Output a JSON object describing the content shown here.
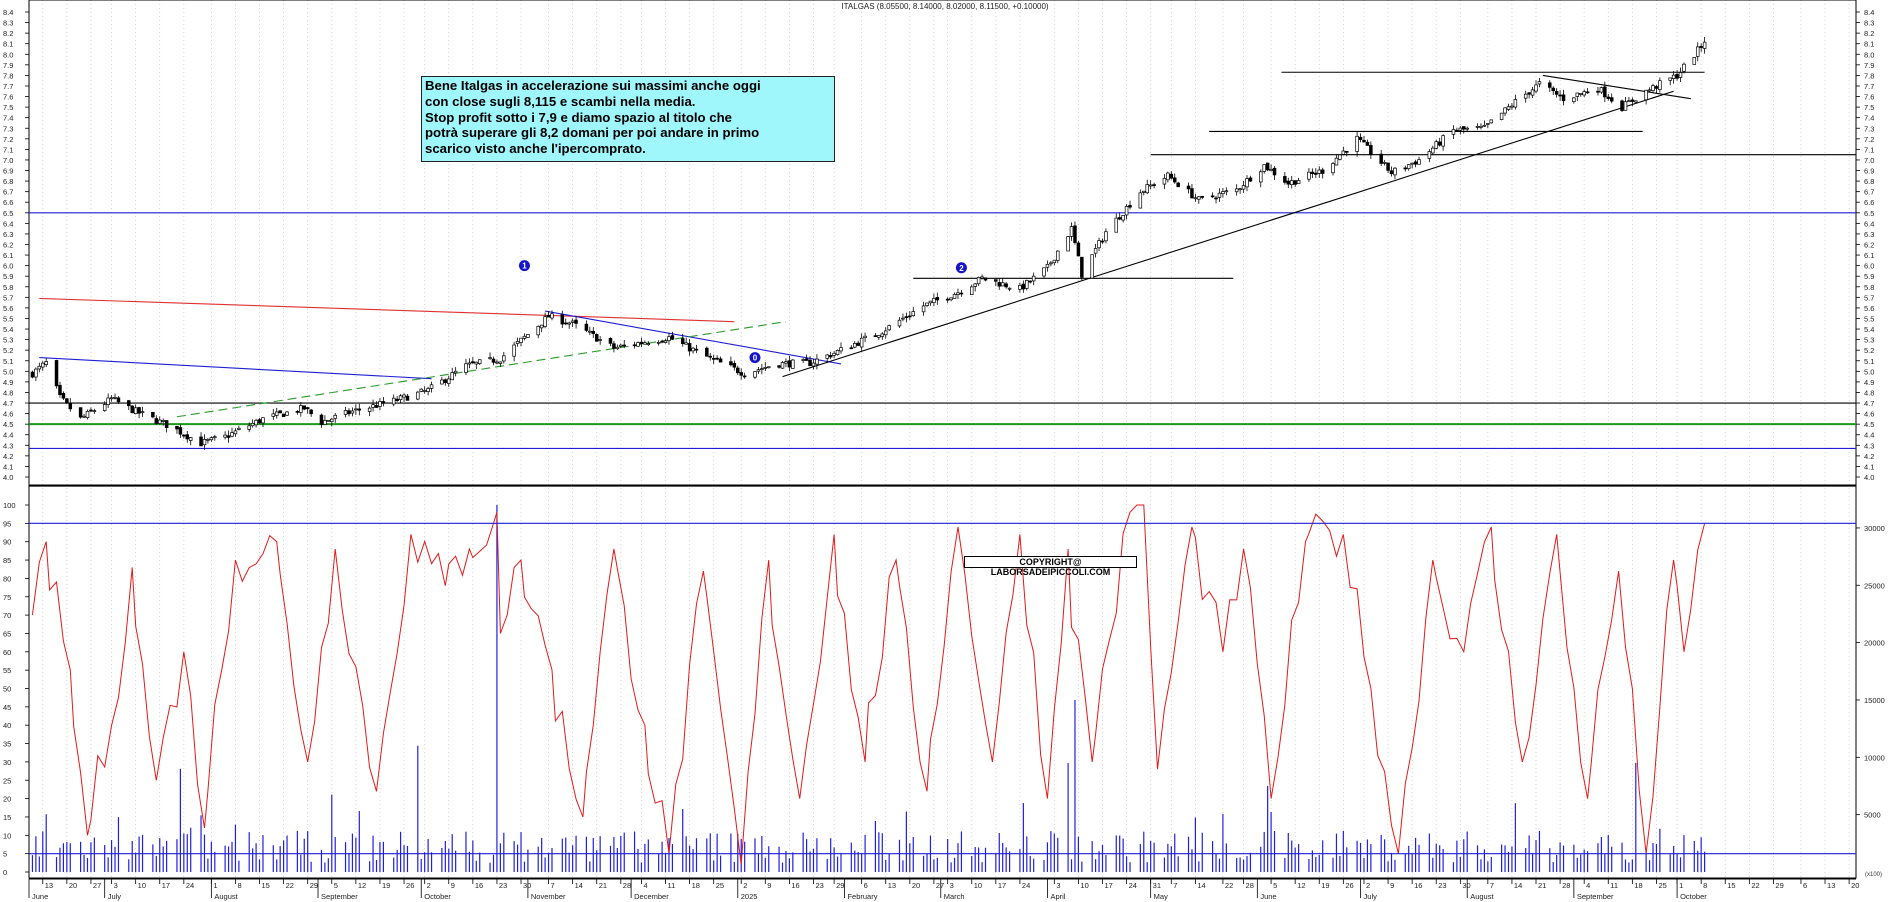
{
  "title": "ITALGAS (8.05500, 8.14000, 8.02000, 8.11500, +0.10000)",
  "annotation": {
    "lines": [
      "Bene Italgas in accelerazione sui massimi anche oggi",
      "con close sugli 8,115 e scambi nella media.",
      "Stop profit sotto i 7,9 e diamo spazio al titolo che",
      "potrà superare gli 8,2 domani per poi andare in primo",
      "scarico visto anche l'ipercomprato."
    ]
  },
  "copyright": "COPYRIGHT@ LABORSADEIPICCOLI.COM",
  "volume_unit_label": "(x100)",
  "chart_data": [
    {
      "type": "candlestick",
      "title": "ITALGAS (8.05500, 8.14000, 8.02000, 8.11500, +0.10000)",
      "ylim": [
        4.0,
        8.4
      ],
      "y_ticks": [
        "4.0",
        "4.1",
        "4.2",
        "4.3",
        "4.4",
        "4.5",
        "4.6",
        "4.7",
        "4.8",
        "4.9",
        "5.0",
        "5.1",
        "5.2",
        "5.3",
        "5.4",
        "5.5",
        "5.6",
        "5.7",
        "5.8",
        "5.9",
        "6.0",
        "6.1",
        "6.2",
        "6.3",
        "6.4",
        "6.5",
        "6.6",
        "6.7",
        "6.8",
        "6.9",
        "7.0",
        "7.1",
        "7.2",
        "7.3",
        "7.4",
        "7.5",
        "7.6",
        "7.7",
        "7.8",
        "7.9",
        "8.0",
        "8.1",
        "8.2",
        "8.3",
        "8.4"
      ],
      "x_range": [
        "2024-06-13",
        "2025-10-24"
      ],
      "last_bar": {
        "open": 8.055,
        "high": 8.14,
        "low": 8.02,
        "close": 8.115,
        "change": 0.1
      },
      "close_path": [
        [
          "2024-06-10",
          4.98
        ],
        [
          "2024-06-14",
          5.08
        ],
        [
          "2024-06-18",
          4.75
        ],
        [
          "2024-06-24",
          4.55
        ],
        [
          "2024-07-03",
          4.74
        ],
        [
          "2024-07-10",
          4.62
        ],
        [
          "2024-07-20",
          4.48
        ],
        [
          "2024-07-29",
          4.32
        ],
        [
          "2024-08-05",
          4.38
        ],
        [
          "2024-08-16",
          4.55
        ],
        [
          "2024-08-28",
          4.65
        ],
        [
          "2024-09-02",
          4.52
        ],
        [
          "2024-09-11",
          4.62
        ],
        [
          "2024-09-23",
          4.72
        ],
        [
          "2024-10-03",
          4.82
        ],
        [
          "2024-10-14",
          5.05
        ],
        [
          "2024-10-24",
          5.12
        ],
        [
          "2024-11-01",
          5.35
        ],
        [
          "2024-11-07",
          5.52
        ],
        [
          "2024-11-14",
          5.45
        ],
        [
          "2024-11-26",
          5.22
        ],
        [
          "2024-12-05",
          5.28
        ],
        [
          "2024-12-12",
          5.32
        ],
        [
          "2024-12-24",
          5.12
        ],
        [
          "2025-01-03",
          4.98
        ],
        [
          "2025-01-12",
          5.07
        ],
        [
          "2025-01-22",
          5.08
        ],
        [
          "2025-01-31",
          5.2
        ],
        [
          "2025-02-12",
          5.38
        ],
        [
          "2025-02-24",
          5.62
        ],
        [
          "2025-03-06",
          5.75
        ],
        [
          "2025-03-13",
          5.88
        ],
        [
          "2025-03-24",
          5.78
        ],
        [
          "2025-04-01",
          5.98
        ],
        [
          "2025-04-08",
          6.35
        ],
        [
          "2025-04-11",
          5.92
        ],
        [
          "2025-04-18",
          6.32
        ],
        [
          "2025-04-28",
          6.7
        ],
        [
          "2025-05-06",
          6.85
        ],
        [
          "2025-05-15",
          6.62
        ],
        [
          "2025-05-26",
          6.72
        ],
        [
          "2025-06-03",
          6.95
        ],
        [
          "2025-06-10",
          6.78
        ],
        [
          "2025-06-20",
          6.9
        ],
        [
          "2025-06-30",
          7.2
        ],
        [
          "2025-07-10",
          6.88
        ],
        [
          "2025-07-18",
          7.0
        ],
        [
          "2025-07-28",
          7.28
        ],
        [
          "2025-08-06",
          7.3
        ],
        [
          "2025-08-15",
          7.55
        ],
        [
          "2025-08-22",
          7.72
        ],
        [
          "2025-08-29",
          7.58
        ],
        [
          "2025-09-08",
          7.68
        ],
        [
          "2025-09-15",
          7.5
        ],
        [
          "2025-09-22",
          7.65
        ],
        [
          "2025-10-01",
          7.8
        ],
        [
          "2025-10-09",
          8.115
        ]
      ],
      "support_resistance_lines": [
        {
          "color": "#1f1fd6",
          "y": 6.5
        },
        {
          "color": "#000000",
          "y": 4.7
        },
        {
          "color": "#1a9a1a",
          "y": 4.5
        },
        {
          "color": "#1f1fd6",
          "y": 4.27
        },
        {
          "color": "#000000",
          "y": 7.05,
          "from": "2025-05-01"
        },
        {
          "color": "#000000",
          "y": 7.27,
          "from": "2025-05-18",
          "to": "2025-09-21"
        },
        {
          "color": "#000000",
          "y": 7.83,
          "from": "2025-06-08",
          "to": "2025-10-09"
        },
        {
          "color": "#000000",
          "y": 5.88,
          "from": "2025-02-21",
          "to": "2025-05-25"
        }
      ],
      "trend_lines": [
        {
          "color": "#e03030",
          "from": [
            "2024-06-12",
            5.69
          ],
          "to": [
            "2024-12-31",
            5.47
          ]
        },
        {
          "color": "#1f1fd6",
          "from": [
            "2024-06-12",
            5.13
          ],
          "to": [
            "2024-10-04",
            4.93
          ]
        },
        {
          "color": "#1f1fd6",
          "from": [
            "2024-11-06",
            5.57
          ],
          "to": [
            "2025-01-31",
            5.07
          ]
        },
        {
          "color": "#2a9a2a",
          "dashed": true,
          "from": [
            "2024-07-22",
            4.57
          ],
          "to": [
            "2025-01-15",
            5.47
          ]
        },
        {
          "color": "#000000",
          "from": [
            "2025-01-14",
            4.95
          ],
          "to": [
            "2025-09-30",
            7.65
          ]
        },
        {
          "color": "#000000",
          "from": [
            "2025-08-23",
            7.8
          ],
          "to": [
            "2025-10-05",
            7.58
          ]
        }
      ],
      "markers": [
        {
          "label": "1",
          "x": "2024-10-31",
          "y": 6.0
        },
        {
          "label": "2",
          "x": "2025-03-07",
          "y": 5.98
        },
        {
          "label": "0",
          "x": "2025-01-06",
          "y": 5.13
        }
      ]
    },
    {
      "type": "line+bar",
      "ylim_left": [
        0,
        100
      ],
      "y_ticks_left": [
        "0",
        "5",
        "10",
        "15",
        "20",
        "25",
        "30",
        "35",
        "40",
        "45",
        "50",
        "55",
        "60",
        "65",
        "70",
        "75",
        "80",
        "85",
        "90",
        "95",
        "100"
      ],
      "ylim_right": [
        0,
        32000
      ],
      "y_ticks_right": [
        "5000",
        "10000",
        "15000",
        "20000",
        "25000",
        "30000"
      ],
      "oscillator_levels": [
        95,
        5
      ],
      "oscillator_key_points": [
        [
          "2024-06-10",
          70
        ],
        [
          "2024-06-14",
          90
        ],
        [
          "2024-06-21",
          55
        ],
        [
          "2024-06-26",
          10
        ],
        [
          "2024-07-03",
          40
        ],
        [
          "2024-07-09",
          83
        ],
        [
          "2024-07-16",
          25
        ],
        [
          "2024-07-24",
          60
        ],
        [
          "2024-07-30",
          12
        ],
        [
          "2024-08-08",
          85
        ],
        [
          "2024-08-20",
          90
        ],
        [
          "2024-08-29",
          30
        ],
        [
          "2024-09-06",
          88
        ],
        [
          "2024-09-18",
          22
        ],
        [
          "2024-09-28",
          92
        ],
        [
          "2024-10-08",
          78
        ],
        [
          "2024-10-15",
          88
        ],
        [
          "2024-10-22",
          95
        ],
        [
          "2024-10-23",
          98
        ],
        [
          "2024-10-24",
          65
        ],
        [
          "2024-10-30",
          85
        ],
        [
          "2024-11-08",
          55
        ],
        [
          "2024-11-17",
          15
        ],
        [
          "2024-11-26",
          88
        ],
        [
          "2024-12-05",
          40
        ],
        [
          "2024-12-12",
          5
        ],
        [
          "2024-12-22",
          82
        ],
        [
          "2025-01-02",
          2
        ],
        [
          "2025-01-10",
          85
        ],
        [
          "2025-01-19",
          20
        ],
        [
          "2025-01-29",
          92
        ],
        [
          "2025-02-07",
          30
        ],
        [
          "2025-02-16",
          85
        ],
        [
          "2025-02-25",
          22
        ],
        [
          "2025-03-06",
          94
        ],
        [
          "2025-03-16",
          30
        ],
        [
          "2025-03-24",
          92
        ],
        [
          "2025-04-01",
          20
        ],
        [
          "2025-04-07",
          88
        ],
        [
          "2025-04-14",
          30
        ],
        [
          "2025-04-25",
          98
        ],
        [
          "2025-04-29",
          100
        ],
        [
          "2025-05-03",
          28
        ],
        [
          "2025-05-13",
          94
        ],
        [
          "2025-05-22",
          60
        ],
        [
          "2025-05-28",
          88
        ],
        [
          "2025-06-05",
          20
        ],
        [
          "2025-06-15",
          90
        ],
        [
          "2025-06-26",
          92
        ],
        [
          "2025-07-04",
          50
        ],
        [
          "2025-07-12",
          5
        ],
        [
          "2025-07-22",
          85
        ],
        [
          "2025-07-31",
          60
        ],
        [
          "2025-08-08",
          94
        ],
        [
          "2025-08-17",
          30
        ],
        [
          "2025-08-27",
          92
        ],
        [
          "2025-09-05",
          20
        ],
        [
          "2025-09-14",
          82
        ],
        [
          "2025-09-22",
          5
        ],
        [
          "2025-09-30",
          85
        ],
        [
          "2025-10-03",
          60
        ],
        [
          "2025-10-09",
          95
        ]
      ]
    }
  ],
  "x_axis": {
    "day_ticks": [
      [
        "2024-06-13",
        "13"
      ],
      [
        "2024-06-20",
        "20"
      ],
      [
        "2024-06-27",
        "27"
      ],
      [
        "2024-07-03",
        "3"
      ],
      [
        "2024-07-10",
        "10"
      ],
      [
        "2024-07-17",
        "17"
      ],
      [
        "2024-07-24",
        "24"
      ],
      [
        "2024-08-01",
        "1"
      ],
      [
        "2024-08-08",
        "8"
      ],
      [
        "2024-08-15",
        "15"
      ],
      [
        "2024-08-22",
        "22"
      ],
      [
        "2024-08-29",
        "29"
      ],
      [
        "2024-09-05",
        "5"
      ],
      [
        "2024-09-12",
        "12"
      ],
      [
        "2024-09-19",
        "19"
      ],
      [
        "2024-09-26",
        "26"
      ],
      [
        "2024-10-02",
        "2"
      ],
      [
        "2024-10-09",
        "9"
      ],
      [
        "2024-10-16",
        "16"
      ],
      [
        "2024-10-23",
        "23"
      ],
      [
        "2024-10-30",
        "30"
      ],
      [
        "2024-11-07",
        "7"
      ],
      [
        "2024-11-14",
        "14"
      ],
      [
        "2024-11-21",
        "21"
      ],
      [
        "2024-11-28",
        "28"
      ],
      [
        "2024-12-04",
        "4"
      ],
      [
        "2024-12-11",
        "11"
      ],
      [
        "2024-12-18",
        "18"
      ],
      [
        "2024-12-25",
        "25"
      ],
      [
        "2025-01-02",
        "2"
      ],
      [
        "2025-01-09",
        "9"
      ],
      [
        "2025-01-16",
        "16"
      ],
      [
        "2025-01-23",
        "23"
      ],
      [
        "2025-01-29",
        "29"
      ],
      [
        "2025-02-06",
        "6"
      ],
      [
        "2025-02-13",
        "13"
      ],
      [
        "2025-02-20",
        "20"
      ],
      [
        "2025-02-27",
        "27"
      ],
      [
        "2025-03-03",
        "3"
      ],
      [
        "2025-03-10",
        "10"
      ],
      [
        "2025-03-17",
        "17"
      ],
      [
        "2025-03-24",
        "24"
      ],
      [
        "2025-04-03",
        "3"
      ],
      [
        "2025-04-10",
        "10"
      ],
      [
        "2025-04-17",
        "17"
      ],
      [
        "2025-04-24",
        "24"
      ],
      [
        "2025-04-31",
        "31"
      ],
      [
        "2025-05-07",
        "7"
      ],
      [
        "2025-05-14",
        "14"
      ],
      [
        "2025-05-22",
        "22"
      ],
      [
        "2025-05-28",
        "28"
      ],
      [
        "2025-06-05",
        "5"
      ],
      [
        "2025-06-12",
        "12"
      ],
      [
        "2025-06-19",
        "19"
      ],
      [
        "2025-06-26",
        "26"
      ],
      [
        "2025-07-02",
        "2"
      ],
      [
        "2025-07-09",
        "9"
      ],
      [
        "2025-07-16",
        "16"
      ],
      [
        "2025-07-23",
        "23"
      ],
      [
        "2025-07-30",
        "30"
      ],
      [
        "2025-08-07",
        "7"
      ],
      [
        "2025-08-14",
        "14"
      ],
      [
        "2025-08-21",
        "21"
      ],
      [
        "2025-08-28",
        "28"
      ],
      [
        "2025-09-04",
        "4"
      ],
      [
        "2025-09-11",
        "11"
      ],
      [
        "2025-09-18",
        "18"
      ],
      [
        "2025-09-25",
        "25"
      ],
      [
        "2025-10-01",
        "1"
      ],
      [
        "2025-10-08",
        "8"
      ],
      [
        "2025-10-15",
        "15"
      ],
      [
        "2025-10-22",
        "22"
      ],
      [
        "2025-10-29",
        "29"
      ],
      [
        "2025-11-06",
        "6"
      ],
      [
        "2025-11-13",
        "13"
      ],
      [
        "2025-11-20",
        "20"
      ]
    ],
    "month_labels": [
      [
        "2024-06-01",
        "June"
      ],
      [
        "2024-07-01",
        "July"
      ],
      [
        "2024-08-01",
        "August"
      ],
      [
        "2024-09-01",
        "September"
      ],
      [
        "2024-10-01",
        "October"
      ],
      [
        "2024-11-01",
        "November"
      ],
      [
        "2024-12-01",
        "December"
      ],
      [
        "2025-01-01",
        "2025"
      ],
      [
        "2025-02-01",
        "February"
      ],
      [
        "2025-03-01",
        "March"
      ],
      [
        "2025-04-01",
        "April"
      ],
      [
        "2025-05-01",
        "May"
      ],
      [
        "2025-06-01",
        "June"
      ],
      [
        "2025-07-01",
        "July"
      ],
      [
        "2025-08-01",
        "August"
      ],
      [
        "2025-09-01",
        "September"
      ],
      [
        "2025-10-01",
        "October"
      ]
    ]
  }
}
